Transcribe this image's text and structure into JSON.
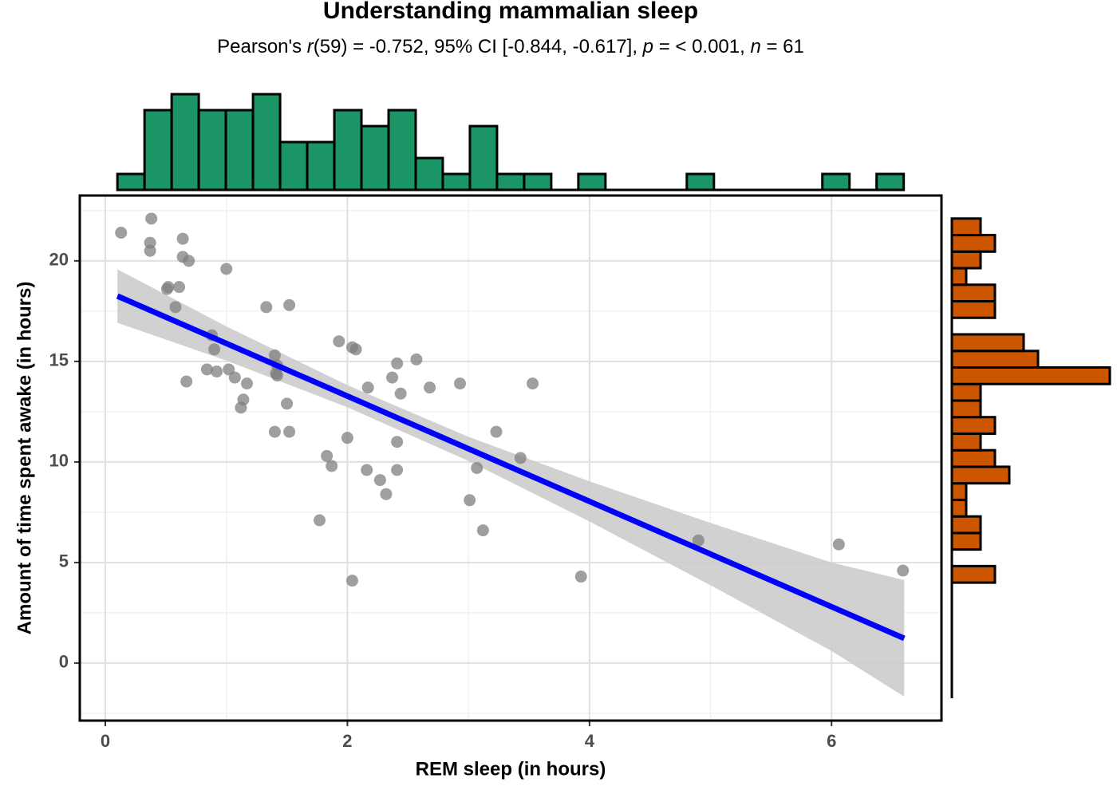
{
  "chart_data": [
    {
      "type": "scatter",
      "title": "Understanding mammalian sleep",
      "subtitle": [
        {
          "text": "Pearson's "
        },
        {
          "text": "r",
          "italic": true
        },
        {
          "text": "(59) = -0.752, 95% CI [-0.844, -0.617], "
        },
        {
          "text": "p",
          "italic": true
        },
        {
          "text": " = < 0.001, "
        },
        {
          "text": "n",
          "italic": true
        },
        {
          "text": " = 61"
        }
      ],
      "x_label": "REM sleep (in hours)",
      "y_label": "Amount of time spent awake (in hours)",
      "x": [
        0.13,
        0.38,
        0.37,
        0.37,
        0.64,
        0.64,
        0.69,
        1.0,
        0.52,
        0.51,
        0.61,
        0.58,
        1.33,
        1.52,
        0.88,
        0.9,
        1.93,
        2.04,
        2.07,
        1.4,
        2.57,
        2.41,
        1.42,
        0.84,
        1.02,
        0.92,
        1.41,
        1.42,
        1.07,
        2.37,
        0.67,
        1.17,
        2.93,
        3.53,
        2.17,
        2.68,
        2.44,
        1.14,
        1.5,
        1.12,
        1.4,
        1.52,
        3.23,
        2.0,
        2.41,
        1.83,
        3.43,
        1.87,
        3.07,
        2.16,
        2.41,
        2.27,
        2.32,
        3.01,
        1.77,
        3.12,
        4.9,
        6.06,
        6.59,
        3.93,
        2.04
      ],
      "y": [
        21.4,
        22.1,
        20.9,
        20.5,
        21.1,
        20.2,
        20.0,
        19.6,
        18.7,
        18.6,
        18.7,
        17.7,
        17.7,
        17.8,
        16.3,
        15.6,
        16.0,
        15.7,
        15.6,
        15.3,
        15.1,
        14.9,
        14.8,
        14.6,
        14.6,
        14.5,
        14.4,
        14.3,
        14.2,
        14.2,
        14.0,
        13.9,
        13.9,
        13.9,
        13.7,
        13.7,
        13.4,
        13.1,
        12.9,
        12.7,
        11.5,
        11.5,
        11.5,
        11.2,
        11.0,
        10.3,
        10.2,
        9.8,
        9.7,
        9.6,
        9.6,
        9.1,
        8.4,
        8.1,
        7.1,
        6.6,
        6.1,
        5.9,
        4.6,
        4.3,
        4.1
      ],
      "color": "#7f7f7f",
      "fit": {
        "x": [
          0.1,
          6.6
        ],
        "y": [
          18.25,
          1.23
        ],
        "color": "#0000ff"
      },
      "band": {
        "x": [
          0.1,
          1,
          2,
          3,
          4,
          5,
          6,
          6.6
        ],
        "lower": [
          16.92,
          15.04,
          12.72,
          10.05,
          7.04,
          3.87,
          0.6,
          -1.67
        ],
        "upper": [
          19.58,
          16.74,
          13.82,
          11.25,
          9.04,
          6.97,
          5.0,
          4.13
        ],
        "color": "#cccccc"
      },
      "xlim": [
        -0.211,
        6.908
      ],
      "ylim": [
        -2.86,
        23.25
      ],
      "xticks": [
        0,
        2,
        4,
        6
      ],
      "yticks": [
        0,
        5,
        10,
        15,
        20
      ],
      "xminor": [
        1,
        3,
        5
      ],
      "yminor": [
        -2.5,
        2.5,
        7.5,
        12.5,
        17.5,
        22.5
      ],
      "grid": true
    },
    {
      "type": "histogram",
      "orientation": "vertical",
      "bins": [
        0.1,
        0.324,
        0.548,
        0.772,
        0.996,
        1.22,
        1.444,
        1.668,
        1.892,
        2.116,
        2.34,
        2.564,
        2.788,
        3.012,
        3.236,
        3.46,
        3.684,
        3.908,
        4.132,
        4.356,
        4.58,
        4.804,
        5.028,
        5.252,
        5.476,
        5.7,
        5.924,
        6.148,
        6.372,
        6.596
      ],
      "values": [
        1,
        5,
        6,
        5,
        5,
        6,
        3,
        3,
        5,
        4,
        5,
        2,
        1,
        4,
        1,
        1,
        0,
        1,
        0,
        0,
        0,
        1,
        0,
        0,
        0,
        0,
        1,
        0,
        1
      ],
      "ylim": [
        0,
        6
      ],
      "color": "#1b9466"
    },
    {
      "type": "histogram",
      "orientation": "horizontal",
      "bins": [
        4.0,
        4.823,
        5.646,
        6.469,
        7.292,
        8.115,
        8.938,
        9.761,
        10.584,
        11.407,
        12.23,
        13.053,
        13.876,
        14.699,
        15.522,
        16.345,
        17.168,
        17.991,
        18.814,
        19.637,
        20.46,
        21.283,
        22.106
      ],
      "values": [
        3,
        0,
        2,
        2,
        1,
        1,
        4,
        3,
        2,
        3,
        2,
        2,
        11,
        6,
        5,
        0,
        3,
        3,
        1,
        2,
        3,
        2
      ],
      "xlim": [
        0,
        11
      ],
      "color": "#cc5500"
    }
  ]
}
